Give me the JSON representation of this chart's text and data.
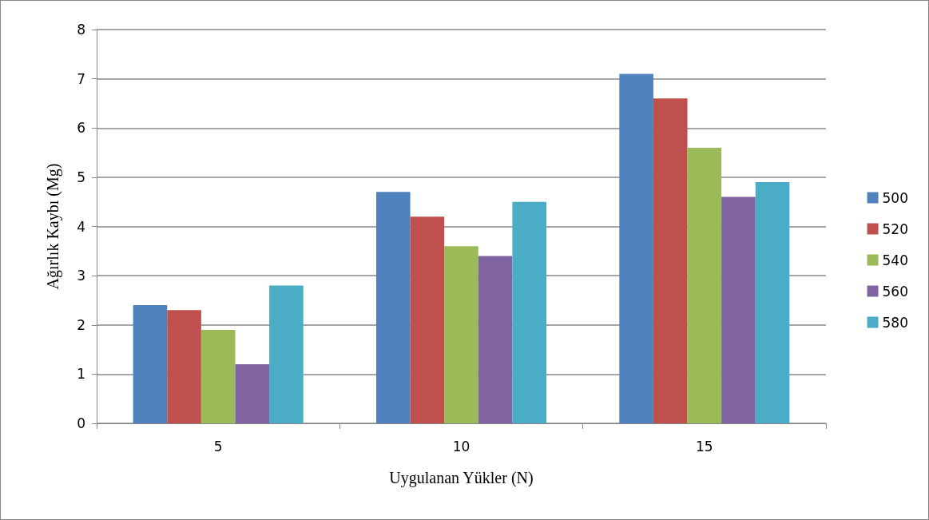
{
  "chart_data": {
    "type": "bar",
    "xlabel": "Uygulanan Yükler (N)",
    "ylabel": "Ağırlık Kaybı (Mg)",
    "categories": [
      "5",
      "10",
      "15"
    ],
    "series": [
      {
        "name": "500",
        "color": "#4f81bd",
        "values": [
          2.4,
          4.7,
          7.1
        ]
      },
      {
        "name": "520",
        "color": "#c0504d",
        "values": [
          2.3,
          4.2,
          6.6
        ]
      },
      {
        "name": "540",
        "color": "#9bbb59",
        "values": [
          1.9,
          3.6,
          5.6
        ]
      },
      {
        "name": "560",
        "color": "#8064a2",
        "values": [
          1.2,
          3.4,
          4.6
        ]
      },
      {
        "name": "580",
        "color": "#4bacc6",
        "values": [
          2.8,
          4.5,
          4.9
        ]
      }
    ],
    "ylim": [
      0,
      8
    ],
    "yticks": [
      0,
      1,
      2,
      3,
      4,
      5,
      6,
      7,
      8
    ],
    "grid": "y",
    "legend": "right"
  }
}
